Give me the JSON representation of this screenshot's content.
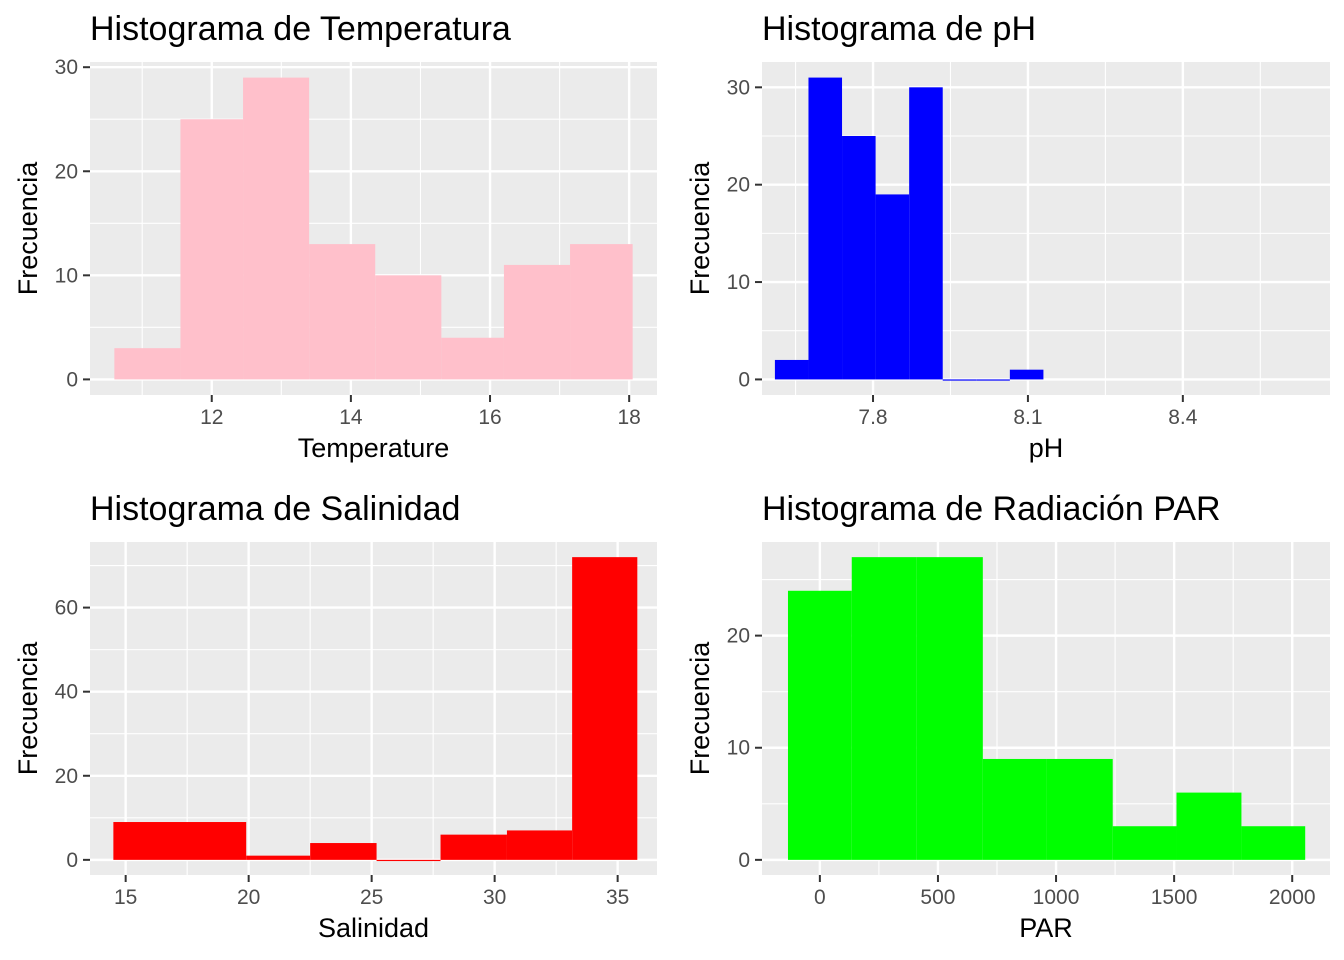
{
  "chart_data": [
    {
      "type": "bar",
      "title": "Histograma de Temperatura",
      "xlabel": "Temperature",
      "ylabel": "Frecuencia",
      "color": "#ffc0cb",
      "xlim": [
        10.25,
        18.4
      ],
      "ylim": [
        -1.5,
        30.5
      ],
      "xticks": [
        12,
        14,
        16,
        18
      ],
      "xticks_minor": [
        11,
        13,
        15,
        17
      ],
      "yticks": [
        0,
        10,
        20,
        30
      ],
      "yticks_minor": [
        5,
        15,
        25
      ],
      "bins": [
        {
          "x0": 10.6,
          "x1": 11.55,
          "count": 3
        },
        {
          "x0": 11.55,
          "x1": 12.45,
          "count": 25
        },
        {
          "x0": 12.45,
          "x1": 13.4,
          "count": 29
        },
        {
          "x0": 13.4,
          "x1": 14.35,
          "count": 13
        },
        {
          "x0": 14.35,
          "x1": 15.3,
          "count": 10
        },
        {
          "x0": 15.3,
          "x1": 16.2,
          "count": 4
        },
        {
          "x0": 16.2,
          "x1": 17.15,
          "count": 11
        },
        {
          "x0": 17.15,
          "x1": 18.05,
          "count": 13
        }
      ]
    },
    {
      "type": "bar",
      "title": "Histograma de pH",
      "xlabel": "pH",
      "ylabel": "Frecuencia",
      "color": "#0000ff",
      "xlim": [
        7.585,
        8.685
      ],
      "ylim": [
        -1.6,
        32.6
      ],
      "xticks": [
        7.8,
        8.1,
        8.4
      ],
      "xtick_labels": [
        "7.8",
        "8.1",
        "8.4"
      ],
      "xticks_minor": [
        7.65,
        7.95,
        8.25,
        8.55
      ],
      "yticks": [
        0,
        10,
        20,
        30
      ],
      "yticks_minor": [
        5,
        15,
        25
      ],
      "bins": [
        {
          "x0": 7.61,
          "x1": 7.675,
          "count": 2
        },
        {
          "x0": 7.675,
          "x1": 7.74,
          "count": 31
        },
        {
          "x0": 7.74,
          "x1": 7.805,
          "count": 25
        },
        {
          "x0": 7.805,
          "x1": 7.87,
          "count": 19
        },
        {
          "x0": 7.87,
          "x1": 7.935,
          "count": 30
        },
        {
          "x0": 7.935,
          "x1": 8.0,
          "count": 0
        },
        {
          "x0": 8.0,
          "x1": 8.065,
          "count": 0
        },
        {
          "x0": 8.065,
          "x1": 8.13,
          "count": 1
        }
      ]
    },
    {
      "type": "bar",
      "title": "Histograma de Salinidad",
      "xlabel": "Salinidad",
      "ylabel": "Frecuencia",
      "color": "#ff0000",
      "xlim": [
        13.55,
        36.6
      ],
      "ylim": [
        -3.6,
        75.6
      ],
      "xticks": [
        15,
        20,
        25,
        30,
        35
      ],
      "xticks_minor": [
        17.5,
        22.5,
        27.5,
        32.5
      ],
      "yticks": [
        0,
        20,
        40,
        60
      ],
      "yticks_minor": [
        10,
        30,
        50,
        70
      ],
      "bins": [
        {
          "x0": 14.5,
          "x1": 19.9,
          "count": 9
        },
        {
          "x0": 19.9,
          "x1": 22.5,
          "count": 1
        },
        {
          "x0": 22.5,
          "x1": 25.2,
          "count": 4
        },
        {
          "x0": 25.2,
          "x1": 27.8,
          "count": 0
        },
        {
          "x0": 27.8,
          "x1": 30.5,
          "count": 6
        },
        {
          "x0": 30.5,
          "x1": 33.15,
          "count": 7
        },
        {
          "x0": 33.15,
          "x1": 35.8,
          "count": 72
        }
      ]
    },
    {
      "type": "bar",
      "title": "Histograma de Radiación PAR",
      "xlabel": "PAR",
      "ylabel": "Frecuencia",
      "color": "#00ff00",
      "xlim": [
        -245,
        2160
      ],
      "ylim": [
        -1.35,
        28.35
      ],
      "xticks": [
        0,
        500,
        1000,
        1500,
        2000
      ],
      "xticks_minor": [
        250,
        750,
        1250,
        1750
      ],
      "yticks": [
        0,
        10,
        20
      ],
      "yticks_minor": [
        5,
        15,
        25
      ],
      "bins": [
        {
          "x0": -135,
          "x1": 135,
          "count": 24
        },
        {
          "x0": 135,
          "x1": 410,
          "count": 27
        },
        {
          "x0": 410,
          "x1": 690,
          "count": 27
        },
        {
          "x0": 690,
          "x1": 960,
          "count": 9
        },
        {
          "x0": 960,
          "x1": 1240,
          "count": 9
        },
        {
          "x0": 1240,
          "x1": 1510,
          "count": 3
        },
        {
          "x0": 1510,
          "x1": 1785,
          "count": 6
        },
        {
          "x0": 1785,
          "x1": 2055,
          "count": 3
        }
      ]
    }
  ]
}
